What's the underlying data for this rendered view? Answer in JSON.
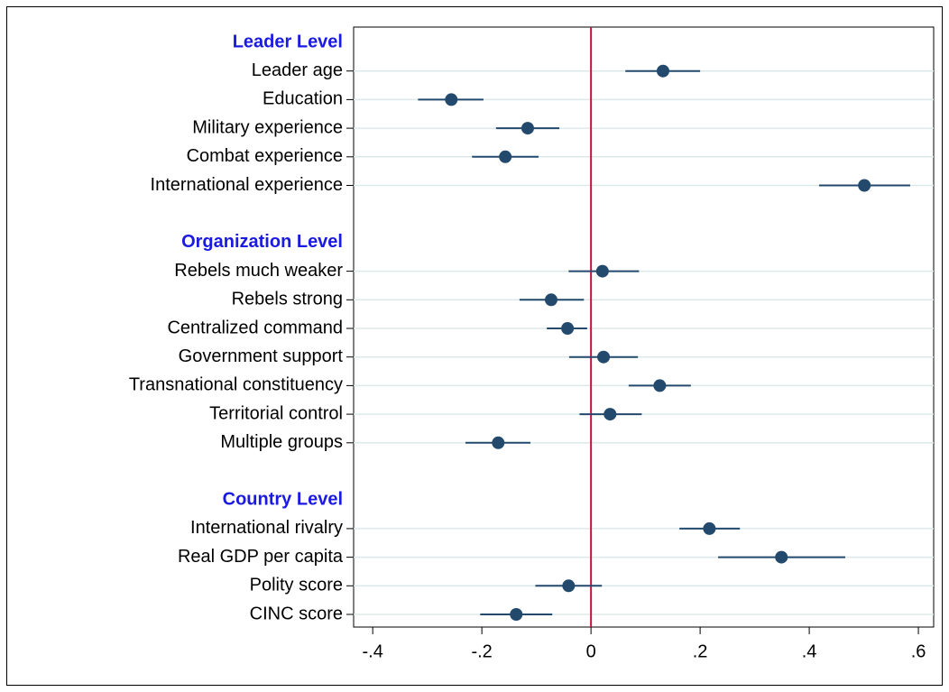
{
  "chart_data": {
    "type": "coefplot",
    "groups": [
      {
        "name": "Leader Level",
        "labels": [
          "Leader age",
          "Education",
          "Military experience",
          "Combat experience",
          "International experience"
        ],
        "values": [
          0.132,
          -0.256,
          -0.116,
          -0.157,
          0.501
        ],
        "lower": [
          0.063,
          -0.317,
          -0.174,
          -0.218,
          0.418
        ],
        "upper": [
          0.2,
          -0.197,
          -0.058,
          -0.096,
          0.585
        ]
      },
      {
        "name": "Organization Level",
        "labels": [
          "Rebels much weaker",
          "Rebels strong",
          "Centralized command",
          "Government support",
          "Transnational constituency",
          "Territorial control",
          "Multiple groups"
        ],
        "values": [
          0.021,
          -0.073,
          -0.043,
          0.023,
          0.126,
          0.035,
          -0.17
        ],
        "lower": [
          -0.041,
          -0.131,
          -0.081,
          -0.04,
          0.069,
          -0.021,
          -0.23
        ],
        "upper": [
          0.088,
          -0.013,
          -0.007,
          0.086,
          0.183,
          0.093,
          -0.111
        ]
      },
      {
        "name": "Country Level",
        "labels": [
          "International rivalry",
          "Real GDP per capita",
          "Polity score",
          "CINC score"
        ],
        "values": [
          0.217,
          0.349,
          -0.041,
          -0.137
        ],
        "lower": [
          0.162,
          0.233,
          -0.102,
          -0.203
        ],
        "upper": [
          0.273,
          0.466,
          0.02,
          -0.071
        ]
      }
    ],
    "xlim": [
      -0.435,
      0.628
    ],
    "xticks": [
      {
        "value": -0.4,
        "label": "-.4"
      },
      {
        "value": -0.2,
        "label": "-.2"
      },
      0,
      {
        "value": 0.2,
        "label": ".2"
      },
      {
        "value": 0.4,
        "label": ".4"
      },
      {
        "value": 0.6,
        "label": ".6"
      }
    ],
    "xline": 0,
    "color": "#234a6d",
    "header_color": "#1a1ae0",
    "xline_color": "#c8143c",
    "grid": true
  }
}
